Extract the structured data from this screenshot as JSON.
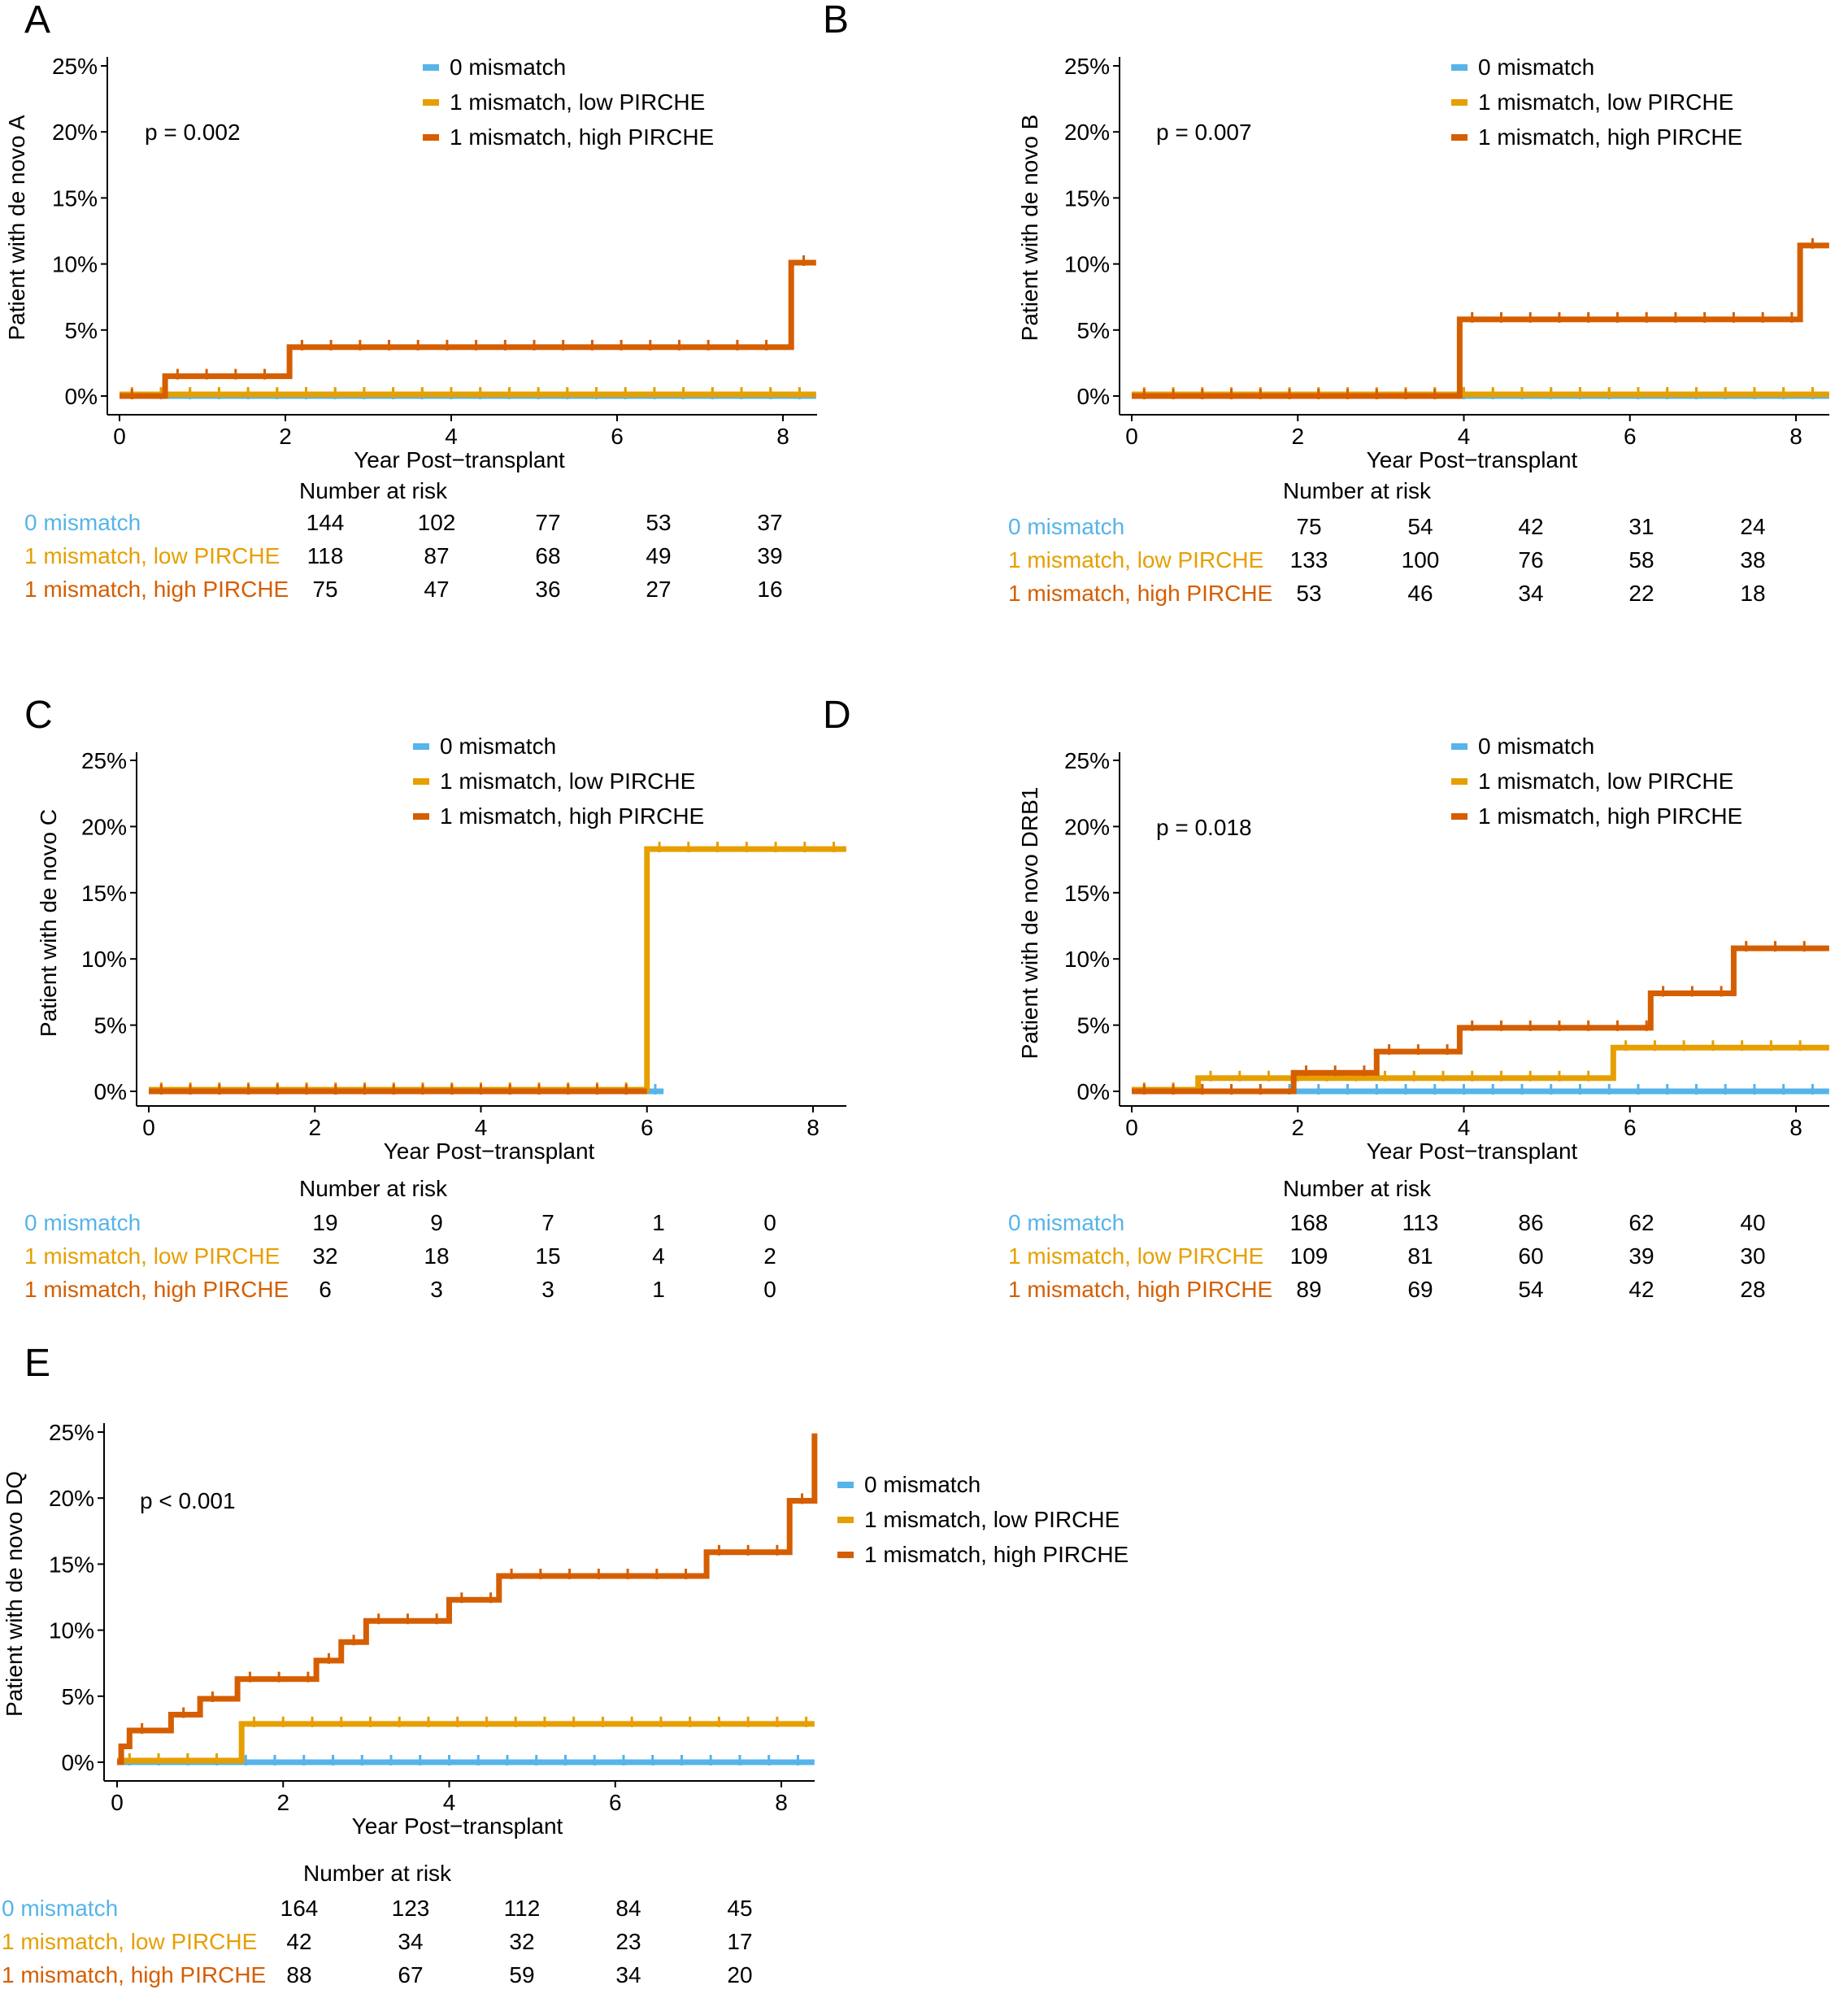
{
  "figure": {
    "series_colors": {
      "mm0": "#56B4E9",
      "low": "#E69F00",
      "high": "#D55E00"
    },
    "x_axis_label": "Year Post−transplant",
    "risk_table_title": "Number at risk"
  },
  "chart_data": [
    {
      "panel": "A",
      "type": "line",
      "step": true,
      "ylabel": "Patient with de novo A",
      "xlabel": "Year Post−transplant",
      "pvalue": "p = 0.002",
      "xlim": [
        0,
        8.4
      ],
      "ylim": [
        0,
        25
      ],
      "xticks": [
        0,
        2,
        4,
        6,
        8
      ],
      "yticks": [
        "0%",
        "5%",
        "10%",
        "15%",
        "20%",
        "25%"
      ],
      "series": [
        {
          "name": "0 mismatch",
          "key": "mm0",
          "x": [
            0,
            8.4
          ],
          "y": [
            0,
            0
          ]
        },
        {
          "name": "1 mismatch, low PIRCHE",
          "key": "low",
          "x": [
            0,
            8.4
          ],
          "y": [
            0,
            0
          ]
        },
        {
          "name": "1 mismatch, high PIRCHE",
          "key": "high",
          "x": [
            0,
            0.55,
            2.05,
            8.1,
            8.4
          ],
          "y": [
            0,
            1.5,
            3.7,
            10.1,
            10.1
          ]
        }
      ],
      "risk_table": {
        "times": [
          0,
          2,
          4,
          6,
          8
        ],
        "rows": [
          {
            "label": "0 mismatch",
            "key": "mm0",
            "values": [
              "144",
              "102",
              "77",
              "53",
              "37"
            ]
          },
          {
            "label": "1 mismatch, low PIRCHE",
            "key": "low",
            "values": [
              "118",
              "87",
              "68",
              "49",
              "39"
            ]
          },
          {
            "label": "1 mismatch, high PIRCHE",
            "key": "high",
            "values": [
              "75",
              "47",
              "36",
              "27",
              "16"
            ]
          }
        ]
      }
    },
    {
      "panel": "B",
      "type": "line",
      "step": true,
      "ylabel": "Patient with de novo B",
      "xlabel": "Year Post−transplant",
      "pvalue": "p = 0.007",
      "xlim": [
        0,
        8.4
      ],
      "ylim": [
        0,
        25
      ],
      "xticks": [
        0,
        2,
        4,
        6,
        8
      ],
      "yticks": [
        "0%",
        "5%",
        "10%",
        "15%",
        "20%",
        "25%"
      ],
      "series": [
        {
          "name": "0 mismatch",
          "key": "mm0",
          "x": [
            0,
            8.4
          ],
          "y": [
            0,
            0
          ]
        },
        {
          "name": "1 mismatch, low PIRCHE",
          "key": "low",
          "x": [
            0,
            8.4
          ],
          "y": [
            0,
            0
          ]
        },
        {
          "name": "1 mismatch, high PIRCHE",
          "key": "high",
          "x": [
            0,
            3.95,
            8.05,
            8.4
          ],
          "y": [
            0,
            5.8,
            11.4,
            11.4
          ]
        }
      ],
      "risk_table": {
        "times": [
          0,
          2,
          4,
          6,
          8
        ],
        "rows": [
          {
            "label": "0 mismatch",
            "key": "mm0",
            "values": [
              "75",
              "54",
              "42",
              "31",
              "24"
            ]
          },
          {
            "label": "1 mismatch, low PIRCHE",
            "key": "low",
            "values": [
              "133",
              "100",
              "76",
              "58",
              "38"
            ]
          },
          {
            "label": "1 mismatch, high PIRCHE",
            "key": "high",
            "values": [
              "53",
              "46",
              "34",
              "22",
              "18"
            ]
          }
        ]
      }
    },
    {
      "panel": "C",
      "type": "line",
      "step": true,
      "ylabel": "Patient with de novo C",
      "xlabel": "Year Post−transplant",
      "pvalue": "",
      "xlim": [
        0,
        8.4
      ],
      "ylim": [
        0,
        25
      ],
      "xticks": [
        0,
        2,
        4,
        6,
        8
      ],
      "yticks": [
        "0%",
        "5%",
        "10%",
        "15%",
        "20%",
        "25%"
      ],
      "series": [
        {
          "name": "0 mismatch",
          "key": "mm0",
          "x": [
            0,
            6.2
          ],
          "y": [
            0,
            0
          ]
        },
        {
          "name": "1 mismatch, low PIRCHE",
          "key": "low",
          "x": [
            0,
            6.0,
            8.4
          ],
          "y": [
            0,
            18.3,
            18.3
          ]
        },
        {
          "name": "1 mismatch, high PIRCHE",
          "key": "high",
          "x": [
            0,
            6.0
          ],
          "y": [
            0,
            0
          ]
        }
      ],
      "risk_table": {
        "times": [
          0,
          2,
          4,
          6,
          8
        ],
        "rows": [
          {
            "label": "0 mismatch",
            "key": "mm0",
            "values": [
              "19",
              "9",
              "7",
              "1",
              "0"
            ]
          },
          {
            "label": "1 mismatch, low PIRCHE",
            "key": "low",
            "values": [
              "32",
              "18",
              "15",
              "4",
              "2"
            ]
          },
          {
            "label": "1 mismatch, high PIRCHE",
            "key": "high",
            "values": [
              "6",
              "3",
              "3",
              "1",
              "0"
            ]
          }
        ]
      }
    },
    {
      "panel": "D",
      "type": "line",
      "step": true,
      "ylabel": "Patient with de novo DRB1",
      "xlabel": "Year Post−transplant",
      "pvalue": "p = 0.018",
      "xlim": [
        0,
        8.4
      ],
      "ylim": [
        0,
        25
      ],
      "xticks": [
        0,
        2,
        4,
        6,
        8
      ],
      "yticks": [
        "0%",
        "5%",
        "10%",
        "15%",
        "20%",
        "25%"
      ],
      "series": [
        {
          "name": "0 mismatch",
          "key": "mm0",
          "x": [
            0,
            8.4
          ],
          "y": [
            0,
            0
          ]
        },
        {
          "name": "1 mismatch, low PIRCHE",
          "key": "low",
          "x": [
            0,
            0.8,
            5.8,
            8.4
          ],
          "y": [
            0,
            1.0,
            3.3,
            3.3
          ]
        },
        {
          "name": "1 mismatch, high PIRCHE",
          "key": "high",
          "x": [
            0,
            1.95,
            2.95,
            3.95,
            6.25,
            7.25,
            8.4
          ],
          "y": [
            0,
            1.4,
            3.0,
            4.8,
            7.4,
            10.8,
            10.8
          ]
        }
      ],
      "risk_table": {
        "times": [
          0,
          2,
          4,
          6,
          8
        ],
        "rows": [
          {
            "label": "0 mismatch",
            "key": "mm0",
            "values": [
              "168",
              "113",
              "86",
              "62",
              "40"
            ]
          },
          {
            "label": "1 mismatch, low PIRCHE",
            "key": "low",
            "values": [
              "109",
              "81",
              "60",
              "39",
              "30"
            ]
          },
          {
            "label": "1 mismatch, high PIRCHE",
            "key": "high",
            "values": [
              "89",
              "69",
              "54",
              "42",
              "28"
            ]
          }
        ]
      }
    },
    {
      "panel": "E",
      "type": "line",
      "step": true,
      "ylabel": "Patient with de novo DQ",
      "xlabel": "Year Post−transplant",
      "pvalue": "p < 0.001",
      "xlim": [
        0,
        8.4
      ],
      "ylim": [
        0,
        25
      ],
      "xticks": [
        0,
        2,
        4,
        6,
        8
      ],
      "yticks": [
        "0%",
        "5%",
        "10%",
        "15%",
        "20%",
        "25%"
      ],
      "series": [
        {
          "name": "0 mismatch",
          "key": "mm0",
          "x": [
            0,
            8.4
          ],
          "y": [
            0,
            0
          ]
        },
        {
          "name": "1 mismatch, low PIRCHE",
          "key": "low",
          "x": [
            0,
            1.5,
            8.4
          ],
          "y": [
            0,
            2.9,
            2.9
          ]
        },
        {
          "name": "1 mismatch, high PIRCHE",
          "key": "high",
          "x": [
            0,
            0.05,
            0.15,
            0.65,
            1.0,
            1.45,
            2.4,
            2.7,
            3.0,
            4.0,
            4.6,
            7.1,
            8.1,
            8.4
          ],
          "y": [
            0,
            1.2,
            2.4,
            3.6,
            4.8,
            6.3,
            7.7,
            9.1,
            10.7,
            12.3,
            14.1,
            15.9,
            19.8,
            24.9
          ]
        }
      ],
      "risk_table": {
        "times": [
          0,
          2,
          4,
          6,
          8
        ],
        "rows": [
          {
            "label": "0 mismatch",
            "key": "mm0",
            "values": [
              "164",
              "123",
              "112",
              "84",
              "45"
            ]
          },
          {
            "label": "1 mismatch, low PIRCHE",
            "key": "low",
            "values": [
              "42",
              "34",
              "32",
              "23",
              "17"
            ]
          },
          {
            "label": "1 mismatch, high PIRCHE",
            "key": "high",
            "values": [
              "88",
              "67",
              "59",
              "34",
              "20"
            ]
          }
        ]
      }
    }
  ]
}
